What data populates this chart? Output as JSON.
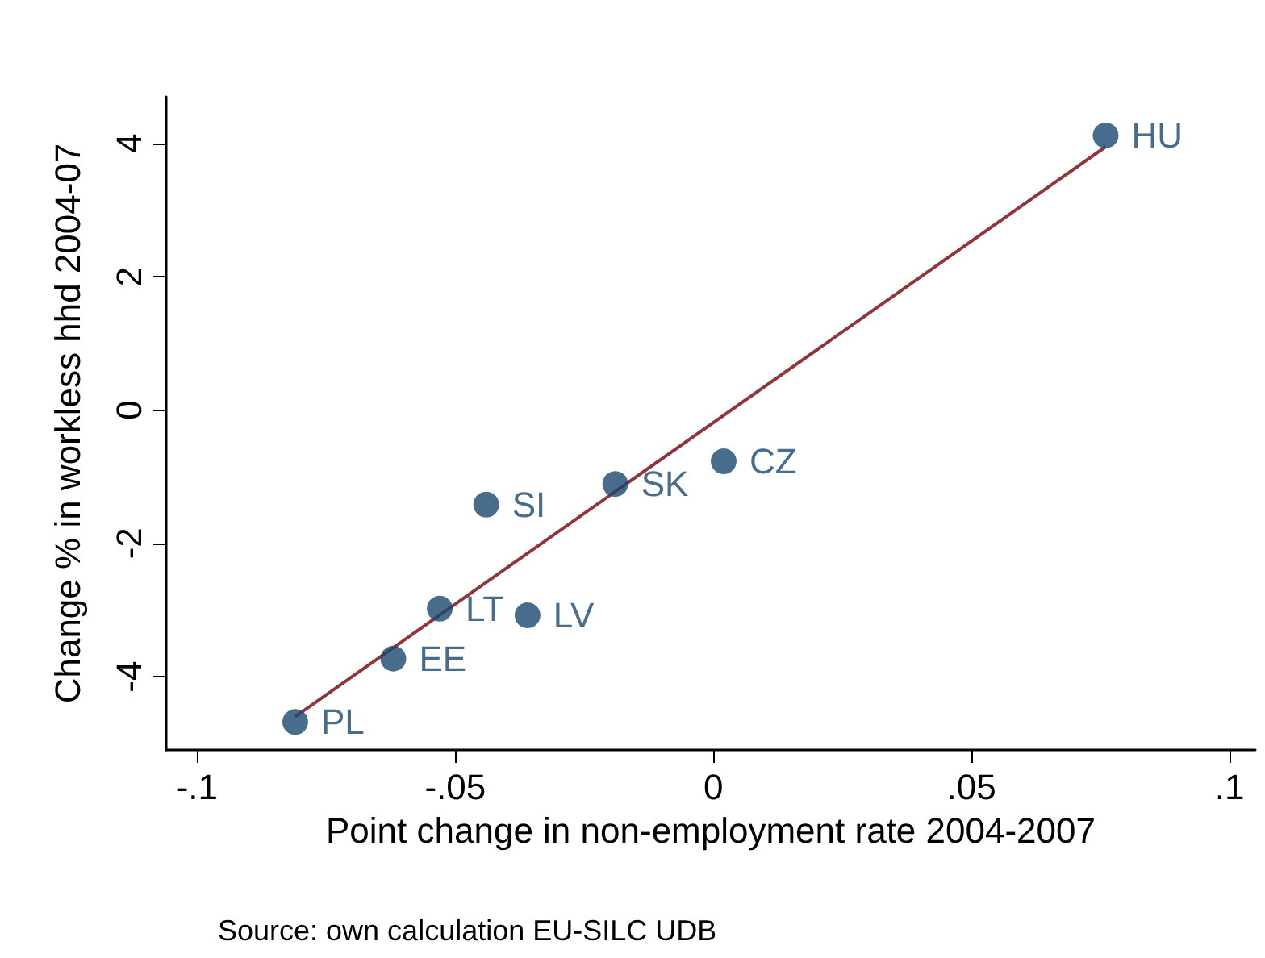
{
  "chart_data": {
    "type": "scatter",
    "xlabel": "Point change in non-employment rate 2004-2007",
    "ylabel": "Change % in workless hhd 2004-07",
    "annotations": [
      "Source: own calculation EU-SILC UDB"
    ],
    "xlim": [
      -0.106,
      0.105
    ],
    "xticks": [
      {
        "value": -0.1,
        "label": "-.1"
      },
      {
        "value": -0.05,
        "label": "-.05"
      },
      {
        "value": 0,
        "label": "0"
      },
      {
        "value": 0.05,
        "label": ".05"
      },
      {
        "value": 0.1,
        "label": ".1"
      }
    ],
    "ylim": [
      -5.1,
      4.7
    ],
    "yticks": [
      -4,
      -2,
      0,
      2,
      4
    ],
    "grid": false,
    "marker": "circle",
    "series": [
      {
        "color": "#1a476f",
        "x": [
          0.076,
          0.002,
          -0.019,
          -0.044,
          -0.053,
          -0.036,
          -0.062,
          -0.081
        ],
        "values": [
          4.12,
          -0.77,
          -1.11,
          -1.42,
          -2.98,
          -3.08,
          -3.73,
          -4.68
        ],
        "value_labels": [
          "HU",
          "CZ",
          "SK",
          "SI",
          "LT",
          "LV",
          "EE",
          "PL"
        ]
      },
      {
        "type": "line",
        "color": "#90353b",
        "marker": "none",
        "x": [
          -0.081,
          0.076
        ],
        "values": [
          -4.6,
          3.95
        ]
      }
    ]
  }
}
